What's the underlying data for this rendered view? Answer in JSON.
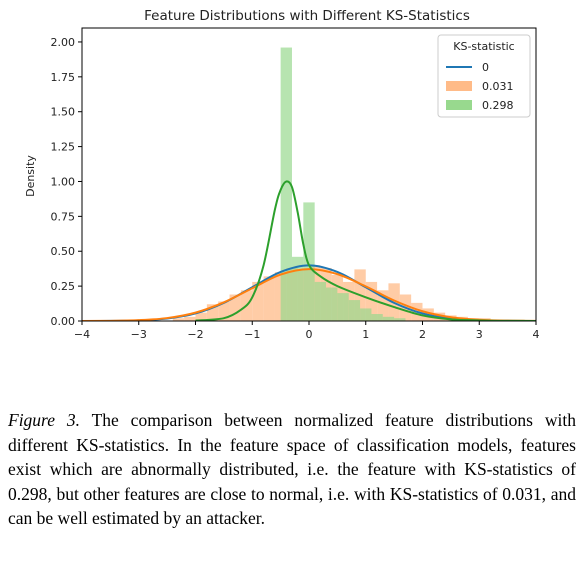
{
  "chart_data": {
    "type": "histogram+kde",
    "title": "Feature Distributions with Different KS-Statistics",
    "xlabel": "",
    "ylabel": "Density",
    "xlim": [
      -4,
      4
    ],
    "ylim": [
      0,
      2.1
    ],
    "x_ticks": [
      -4,
      -3,
      -2,
      -1,
      0,
      1,
      2,
      3,
      4
    ],
    "y_ticks": [
      "0.00",
      "0.25",
      "0.50",
      "0.75",
      "1.00",
      "1.25",
      "1.50",
      "1.75",
      "2.00"
    ],
    "grid": false,
    "legend": {
      "title": "KS-statistic",
      "placement": "top-right",
      "entries": [
        {
          "label": "0",
          "kind": "line",
          "color": "#1f77b4"
        },
        {
          "label": "0.031",
          "kind": "patch",
          "color": "#ffbb88"
        },
        {
          "label": "0.298",
          "kind": "patch",
          "color": "#98d98e"
        }
      ]
    },
    "series": [
      {
        "name": "0",
        "kind": "kde",
        "color": "#1f77b4",
        "points": [
          [
            -4,
            0.0001
          ],
          [
            -3.5,
            0.0009
          ],
          [
            -3,
            0.0044
          ],
          [
            -2.5,
            0.0175
          ],
          [
            -2,
            0.054
          ],
          [
            -1.5,
            0.13
          ],
          [
            -1,
            0.242
          ],
          [
            -0.5,
            0.352
          ],
          [
            0,
            0.399
          ],
          [
            0.5,
            0.352
          ],
          [
            1,
            0.242
          ],
          [
            1.5,
            0.13
          ],
          [
            2,
            0.054
          ],
          [
            2.5,
            0.0175
          ],
          [
            3,
            0.0044
          ],
          [
            3.5,
            0.0009
          ],
          [
            4,
            0.0001
          ]
        ]
      },
      {
        "name": "0.031",
        "kind": "histogram+kde",
        "color": "#ff7f0e",
        "fill": "#ffbb88",
        "bin_edges": [
          -2.4,
          -2.2,
          -2.0,
          -1.8,
          -1.6,
          -1.4,
          -1.2,
          -1.0,
          -0.8,
          -0.6,
          -0.4,
          -0.2,
          0.0,
          0.2,
          0.4,
          0.6,
          0.8,
          1.0,
          1.2,
          1.4,
          1.6,
          1.8,
          2.0,
          2.2,
          2.4,
          2.6,
          2.8,
          3.0,
          3.2,
          3.4,
          3.6,
          3.8
        ],
        "bin_heights": [
          0.02,
          0.03,
          0.06,
          0.12,
          0.14,
          0.19,
          0.22,
          0.28,
          0.32,
          0.35,
          0.38,
          0.37,
          0.4,
          0.38,
          0.33,
          0.28,
          0.37,
          0.28,
          0.22,
          0.27,
          0.19,
          0.13,
          0.09,
          0.06,
          0.04,
          0.03,
          0.02,
          0.02,
          0.01,
          0.01,
          0.01
        ],
        "points": [
          [
            -4,
            0.0002
          ],
          [
            -3.5,
            0.0013
          ],
          [
            -3,
            0.006
          ],
          [
            -2.5,
            0.021
          ],
          [
            -2,
            0.06
          ],
          [
            -1.5,
            0.134
          ],
          [
            -1,
            0.235
          ],
          [
            -0.5,
            0.333
          ],
          [
            0,
            0.372
          ],
          [
            0.5,
            0.336
          ],
          [
            1,
            0.248
          ],
          [
            1.5,
            0.147
          ],
          [
            2,
            0.07
          ],
          [
            2.5,
            0.027
          ],
          [
            3,
            0.009
          ],
          [
            3.5,
            0.0025
          ],
          [
            4,
            0.0006
          ]
        ]
      },
      {
        "name": "0.298",
        "kind": "histogram+kde",
        "color": "#2ca02c",
        "fill": "#98d98e",
        "bin_edges": [
          -0.5,
          -0.3,
          -0.1,
          0.1,
          0.3,
          0.5,
          0.7,
          0.9,
          1.1,
          1.3,
          1.5,
          1.7
        ],
        "bin_heights": [
          1.96,
          0.46,
          0.85,
          0.28,
          0.24,
          0.2,
          0.15,
          0.09,
          0.05,
          0.03,
          0.02
        ],
        "points": [
          [
            -2,
            0.003
          ],
          [
            -1.5,
            0.02
          ],
          [
            -1.2,
            0.08
          ],
          [
            -1,
            0.17
          ],
          [
            -0.8,
            0.4
          ],
          [
            -0.6,
            0.8
          ],
          [
            -0.5,
            0.94
          ],
          [
            -0.4,
            1.0
          ],
          [
            -0.3,
            0.96
          ],
          [
            -0.2,
            0.78
          ],
          [
            -0.1,
            0.55
          ],
          [
            0,
            0.4
          ],
          [
            0.2,
            0.32
          ],
          [
            0.5,
            0.25
          ],
          [
            1,
            0.17
          ],
          [
            1.5,
            0.1
          ],
          [
            2,
            0.04
          ],
          [
            2.5,
            0.012
          ],
          [
            3,
            0.004
          ],
          [
            3.5,
            0.001
          ],
          [
            4,
            0.0003
          ]
        ]
      }
    ]
  },
  "caption": {
    "figure_label": "Figure 3.",
    "text": " The comparison between normalized feature distributions with different KS-statistics. In the feature space of classification models, features exist which are abnormally distributed, i.e. the feature with KS-statistics of 0.298, but other features are close to normal, i.e. with KS-statistics of 0.031, and can be well estimated by an attacker."
  }
}
